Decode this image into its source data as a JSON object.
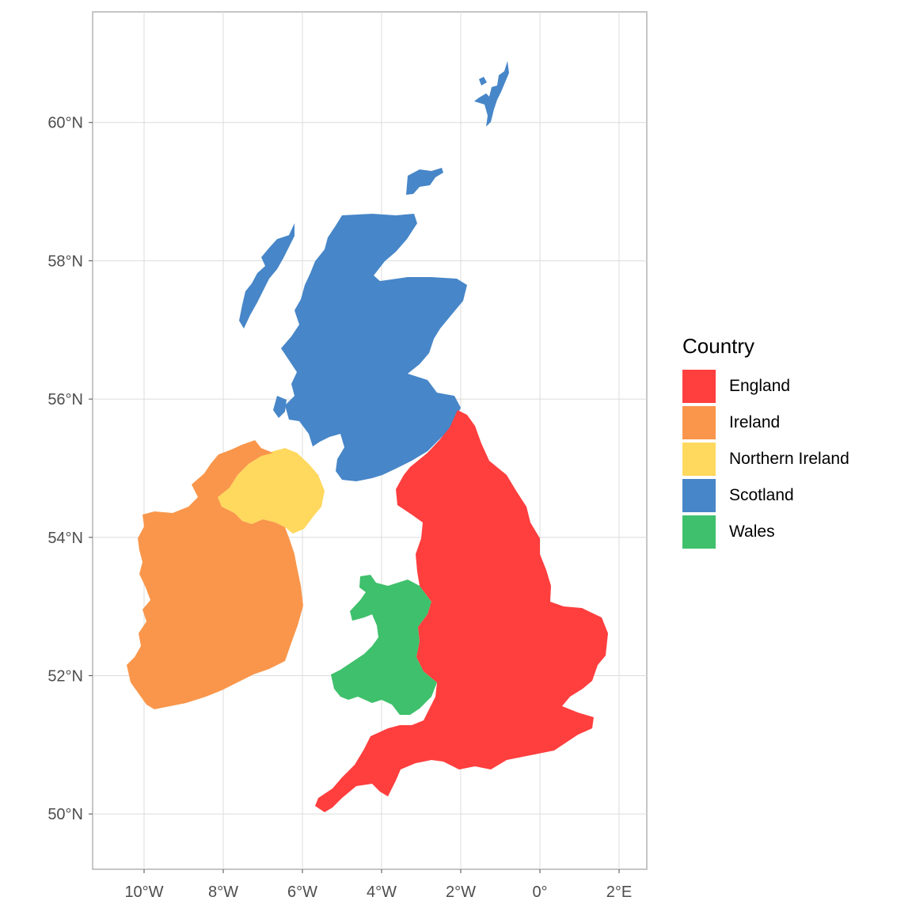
{
  "map": {
    "x_ticks": [
      "10°W",
      "8°W",
      "6°W",
      "4°W",
      "2°W",
      "0°",
      "2°E"
    ],
    "y_ticks": [
      "60°N",
      "58°N",
      "56°N",
      "54°N",
      "52°N",
      "50°N"
    ],
    "x_tick_values": [
      -10,
      -8,
      -6,
      -4,
      -2,
      0,
      2
    ],
    "y_tick_values": [
      60,
      58,
      56,
      54,
      52,
      50
    ],
    "lon_range": [
      -11.3,
      2.7
    ],
    "lat_range": [
      49.2,
      61.6
    ],
    "grid": true
  },
  "legend": {
    "title": "Country",
    "placement": "right",
    "items": [
      {
        "label": "England",
        "color": "#ff3e3e"
      },
      {
        "label": "Ireland",
        "color": "#f9964b"
      },
      {
        "label": "Northern Ireland",
        "color": "#ffd85e"
      },
      {
        "label": "Scotland",
        "color": "#4786c8"
      },
      {
        "label": "Wales",
        "color": "#3fc06c"
      }
    ]
  },
  "regions": [
    {
      "name": "England",
      "color": "#ff3e3e"
    },
    {
      "name": "Ireland",
      "color": "#f9964b"
    },
    {
      "name": "Northern Ireland",
      "color": "#ffd85e"
    },
    {
      "name": "Scotland",
      "color": "#4786c8"
    },
    {
      "name": "Wales",
      "color": "#3fc06c"
    }
  ]
}
